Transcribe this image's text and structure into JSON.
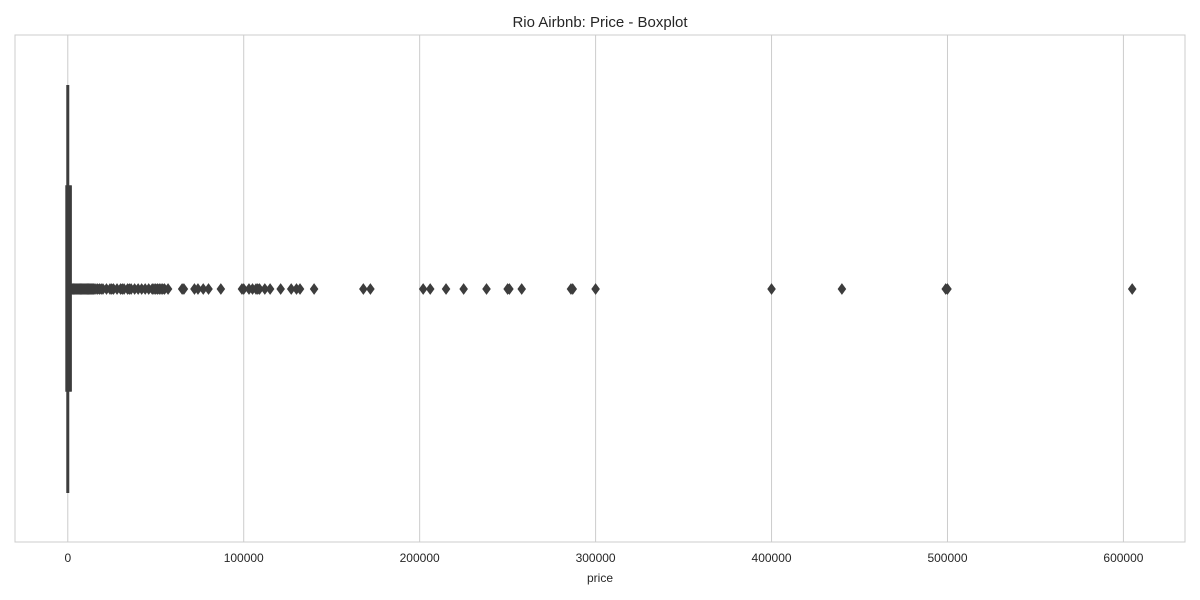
{
  "chart_data": {
    "type": "boxplot",
    "title": "Rio Airbnb: Price - Boxplot",
    "xlabel": "price",
    "ylabel": "",
    "orientation": "horizontal",
    "grid": "vertical gridlines",
    "xlim": [
      -30000,
      635000
    ],
    "xticks": [
      0,
      100000,
      200000,
      300000,
      400000,
      500000,
      600000
    ],
    "xtick_labels": [
      "0",
      "100000",
      "200000",
      "300000",
      "400000",
      "500000",
      "600000"
    ],
    "box": {
      "whisker_low": 0,
      "q1": 157,
      "median": 280,
      "q3": 650,
      "whisker_high": 1380
    },
    "outliers": [
      1500,
      2000,
      2500,
      3000,
      3500,
      4000,
      4500,
      5000,
      5500,
      6000,
      6500,
      7000,
      7500,
      8000,
      8500,
      9000,
      9500,
      10000,
      10500,
      11000,
      11500,
      12000,
      12500,
      13000,
      13500,
      14000,
      14500,
      15000,
      16000,
      17000,
      18000,
      19000,
      20000,
      22000,
      24000,
      25000,
      26000,
      28000,
      30000,
      31000,
      32000,
      34000,
      35000,
      36000,
      38000,
      40000,
      42000,
      44000,
      46000,
      48000,
      49000,
      50000,
      51000,
      52000,
      53000,
      54000,
      55000,
      57000,
      65000,
      66000,
      72000,
      74000,
      77000,
      80000,
      87000,
      99000,
      100000,
      103000,
      105000,
      107000,
      108000,
      109000,
      112000,
      115000,
      121000,
      127000,
      130000,
      132000,
      140000,
      168000,
      172000,
      202000,
      206000,
      215000,
      225000,
      238000,
      250000,
      251000,
      258000,
      286000,
      287000,
      300000,
      400000,
      440000,
      499000,
      500000,
      605000
    ],
    "colors": {
      "box": "#3d3d3d",
      "outlier": "#3d3d3d",
      "grid": "#cccccc",
      "spine": "#cccccc",
      "text": "#262626"
    }
  }
}
